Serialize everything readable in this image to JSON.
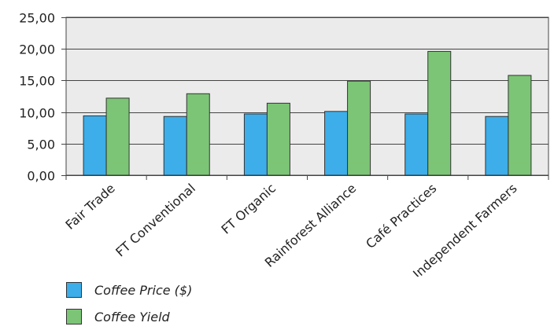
{
  "chart_data": {
    "type": "bar",
    "categories": [
      "Fair Trade",
      "FT Conventional",
      "FT Organic",
      "Rainforest Alliance",
      "Café Practices",
      "Independent Farmers"
    ],
    "series": [
      {
        "name": "Coffee Price ($)",
        "color": "#3daee9",
        "values": [
          9.4,
          9.3,
          9.7,
          10.1,
          9.7,
          9.3
        ]
      },
      {
        "name": "Coffee Yield",
        "color": "#7cc576",
        "values": [
          12.2,
          12.9,
          11.4,
          14.9,
          19.6,
          15.8
        ]
      }
    ],
    "title": "",
    "xlabel": "",
    "ylabel": "",
    "ylim": [
      0,
      25
    ],
    "yticks": [
      "0,00",
      "5,00",
      "10,00",
      "15,00",
      "20,00",
      "25,00"
    ],
    "grid": true,
    "plot_background": "#ebebeb",
    "legend_position": "bottom-left"
  }
}
